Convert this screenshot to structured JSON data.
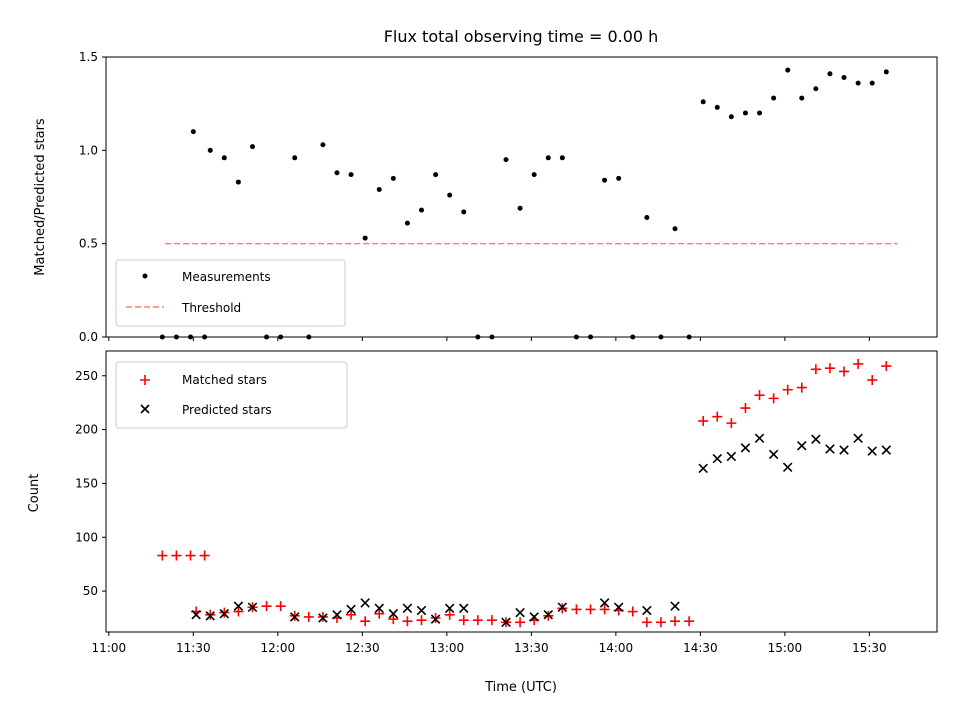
{
  "chart_data": [
    {
      "type": "scatter",
      "title": "Flux total observing time = 0.00 h",
      "xlabel": "",
      "ylabel": "Matched/Predicted stars",
      "ylim": [
        0,
        1.5
      ],
      "yticks": [
        "0.0",
        "0.5",
        "1.0",
        "1.5"
      ],
      "xlim": [
        "10:59",
        "15:54"
      ],
      "xtick_labels_shown": false,
      "legend": {
        "placement": "lower-left",
        "entries": [
          "Measurements",
          "Threshold"
        ]
      },
      "colors": {
        "measurements": "#000000",
        "threshold": "#ff7f7f"
      },
      "threshold": {
        "y": 0.5,
        "x_start": "11:20",
        "x_end": "15:40",
        "style": "dashed"
      },
      "series": [
        {
          "name": "Measurements",
          "points": [
            [
              "11:19",
              0.0
            ],
            [
              "11:24",
              0.0
            ],
            [
              "11:29",
              0.0
            ],
            [
              "11:34",
              0.0
            ],
            [
              "11:30",
              1.1
            ],
            [
              "11:36",
              1.0
            ],
            [
              "11:41",
              0.96
            ],
            [
              "11:46",
              0.83
            ],
            [
              "11:51",
              1.02
            ],
            [
              "11:56",
              0.0
            ],
            [
              "12:01",
              0.0
            ],
            [
              "12:06",
              0.96
            ],
            [
              "12:11",
              0.0
            ],
            [
              "12:16",
              1.03
            ],
            [
              "12:21",
              0.88
            ],
            [
              "12:26",
              0.87
            ],
            [
              "12:31",
              0.53
            ],
            [
              "12:36",
              0.79
            ],
            [
              "12:41",
              0.85
            ],
            [
              "12:46",
              0.61
            ],
            [
              "12:51",
              0.68
            ],
            [
              "12:56",
              0.87
            ],
            [
              "13:01",
              0.76
            ],
            [
              "13:06",
              0.67
            ],
            [
              "13:11",
              0.0
            ],
            [
              "13:16",
              0.0
            ],
            [
              "13:21",
              0.95
            ],
            [
              "13:26",
              0.69
            ],
            [
              "13:31",
              0.87
            ],
            [
              "13:36",
              0.96
            ],
            [
              "13:41",
              0.96
            ],
            [
              "13:46",
              0.0
            ],
            [
              "13:51",
              0.0
            ],
            [
              "13:56",
              0.84
            ],
            [
              "14:01",
              0.85
            ],
            [
              "14:06",
              0.0
            ],
            [
              "14:11",
              0.64
            ],
            [
              "14:16",
              0.0
            ],
            [
              "14:21",
              0.58
            ],
            [
              "14:26",
              0.0
            ],
            [
              "14:31",
              1.26
            ],
            [
              "14:36",
              1.23
            ],
            [
              "14:41",
              1.18
            ],
            [
              "14:46",
              1.2
            ],
            [
              "14:51",
              1.2
            ],
            [
              "14:56",
              1.28
            ],
            [
              "15:01",
              1.43
            ],
            [
              "15:06",
              1.28
            ],
            [
              "15:11",
              1.33
            ],
            [
              "15:16",
              1.41
            ],
            [
              "15:21",
              1.39
            ],
            [
              "15:26",
              1.36
            ],
            [
              "15:31",
              1.36
            ],
            [
              "15:36",
              1.42
            ]
          ]
        }
      ]
    },
    {
      "type": "scatter",
      "title": "",
      "xlabel": "Time (UTC)",
      "ylabel": "Count",
      "ylim": [
        12,
        273
      ],
      "yticks": [
        "50",
        "100",
        "150",
        "200",
        "250"
      ],
      "xlim": [
        "10:59",
        "15:54"
      ],
      "xticks": [
        "11:00",
        "11:30",
        "12:00",
        "12:30",
        "13:00",
        "13:30",
        "14:00",
        "14:30",
        "15:00",
        "15:30"
      ],
      "legend": {
        "placement": "upper-left",
        "entries": [
          "Matched stars",
          "Predicted stars"
        ]
      },
      "colors": {
        "matched": "#ff0000",
        "predicted": "#000000"
      },
      "series": [
        {
          "name": "Matched stars",
          "marker": "plus",
          "points": [
            [
              "11:19",
              83
            ],
            [
              "11:24",
              83
            ],
            [
              "11:29",
              83
            ],
            [
              "11:34",
              83
            ],
            [
              "11:31",
              31
            ],
            [
              "11:36",
              28
            ],
            [
              "11:41",
              30
            ],
            [
              "11:46",
              31
            ],
            [
              "11:51",
              35
            ],
            [
              "11:56",
              36
            ],
            [
              "12:01",
              36
            ],
            [
              "12:06",
              27
            ],
            [
              "12:11",
              26
            ],
            [
              "12:16",
              26
            ],
            [
              "12:21",
              25
            ],
            [
              "12:26",
              28
            ],
            [
              "12:31",
              22
            ],
            [
              "12:36",
              29
            ],
            [
              "12:41",
              24
            ],
            [
              "12:46",
              22
            ],
            [
              "12:51",
              23
            ],
            [
              "12:56",
              25
            ],
            [
              "13:01",
              28
            ],
            [
              "13:06",
              23
            ],
            [
              "13:11",
              23
            ],
            [
              "13:16",
              23
            ],
            [
              "13:21",
              21
            ],
            [
              "13:26",
              21
            ],
            [
              "13:31",
              23
            ],
            [
              "13:36",
              27
            ],
            [
              "13:41",
              34
            ],
            [
              "13:46",
              33
            ],
            [
              "13:51",
              33
            ],
            [
              "13:56",
              33
            ],
            [
              "14:01",
              32
            ],
            [
              "14:06",
              31
            ],
            [
              "14:11",
              21
            ],
            [
              "14:16",
              21
            ],
            [
              "14:21",
              22
            ],
            [
              "14:26",
              22
            ],
            [
              "14:31",
              208
            ],
            [
              "14:36",
              212
            ],
            [
              "14:41",
              206
            ],
            [
              "14:46",
              220
            ],
            [
              "14:51",
              232
            ],
            [
              "14:56",
              229
            ],
            [
              "15:01",
              237
            ],
            [
              "15:06",
              239
            ],
            [
              "15:11",
              256
            ],
            [
              "15:16",
              257
            ],
            [
              "15:21",
              254
            ],
            [
              "15:26",
              261
            ],
            [
              "15:31",
              246
            ],
            [
              "15:36",
              259
            ]
          ]
        },
        {
          "name": "Predicted stars",
          "marker": "x",
          "points": [
            [
              "11:31",
              28
            ],
            [
              "11:36",
              27
            ],
            [
              "11:41",
              29
            ],
            [
              "11:46",
              36
            ],
            [
              "11:51",
              35
            ],
            [
              "12:06",
              26
            ],
            [
              "12:16",
              25
            ],
            [
              "12:21",
              28
            ],
            [
              "12:26",
              33
            ],
            [
              "12:31",
              39
            ],
            [
              "12:36",
              34
            ],
            [
              "12:41",
              29
            ],
            [
              "12:46",
              34
            ],
            [
              "12:51",
              32
            ],
            [
              "12:56",
              24
            ],
            [
              "13:01",
              34
            ],
            [
              "13:06",
              34
            ],
            [
              "13:21",
              21
            ],
            [
              "13:26",
              30
            ],
            [
              "13:31",
              26
            ],
            [
              "13:36",
              28
            ],
            [
              "13:41",
              35
            ],
            [
              "13:56",
              39
            ],
            [
              "14:01",
              35
            ],
            [
              "14:11",
              32
            ],
            [
              "14:21",
              36
            ],
            [
              "14:31",
              164
            ],
            [
              "14:36",
              173
            ],
            [
              "14:41",
              175
            ],
            [
              "14:46",
              183
            ],
            [
              "14:51",
              192
            ],
            [
              "14:56",
              177
            ],
            [
              "15:01",
              165
            ],
            [
              "15:06",
              185
            ],
            [
              "15:11",
              191
            ],
            [
              "15:16",
              182
            ],
            [
              "15:21",
              181
            ],
            [
              "15:26",
              192
            ],
            [
              "15:31",
              180
            ],
            [
              "15:36",
              181
            ]
          ]
        }
      ]
    }
  ]
}
